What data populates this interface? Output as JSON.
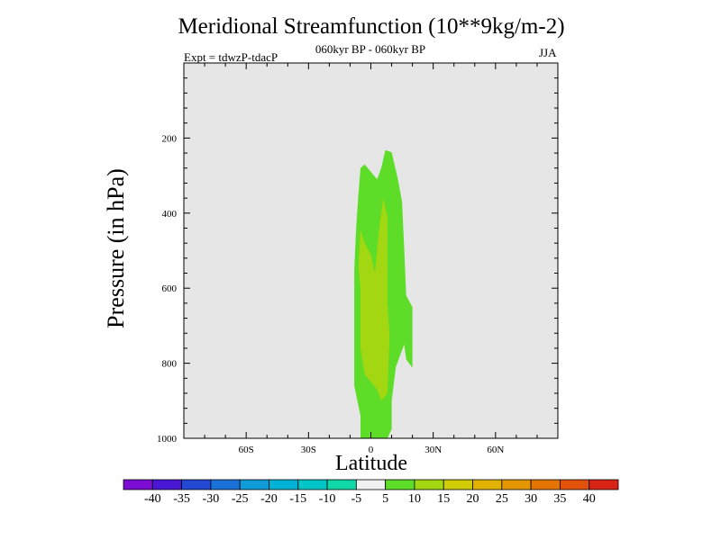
{
  "chart_data": {
    "type": "heatmap",
    "title": "Meridional Streamfunction (10**9kg/m-2)",
    "subtitle": "060kyr BP - 060kyr BP",
    "left_note": "Expt = tdwzP-tdacP",
    "right_note": "JJA",
    "xlabel": "Latitude",
    "ylabel": "Pressure (in hPa)",
    "xlim": [
      -90,
      90
    ],
    "ylim": [
      1000,
      0
    ],
    "x_ticks": [
      {
        "value": -60,
        "label": "60S"
      },
      {
        "value": -30,
        "label": "30S"
      },
      {
        "value": 0,
        "label": "0"
      },
      {
        "value": 30,
        "label": "30N"
      },
      {
        "value": 60,
        "label": "60N"
      }
    ],
    "y_ticks": [
      {
        "value": 200,
        "label": "200"
      },
      {
        "value": 400,
        "label": "400"
      },
      {
        "value": 600,
        "label": "600"
      },
      {
        "value": 800,
        "label": "800"
      },
      {
        "value": 1000,
        "label": "1000"
      }
    ],
    "background_color": "#e6e6e6",
    "contour_regions": [
      {
        "level": "5 to 10",
        "color": "#5ddc28",
        "polygon": [
          [
            -5,
            1000
          ],
          [
            -5,
            940
          ],
          [
            -8,
            860
          ],
          [
            -8,
            690
          ],
          [
            -8,
            550
          ],
          [
            -7,
            430
          ],
          [
            -6,
            350
          ],
          [
            -5,
            280
          ],
          [
            -3,
            270
          ],
          [
            0,
            290
          ],
          [
            3,
            310
          ],
          [
            5,
            280
          ],
          [
            7,
            232
          ],
          [
            10,
            238
          ],
          [
            13,
            310
          ],
          [
            15,
            370
          ],
          [
            16,
            490
          ],
          [
            17,
            620
          ],
          [
            20,
            650
          ],
          [
            20,
            812
          ],
          [
            17,
            790
          ],
          [
            16,
            750
          ],
          [
            12,
            810
          ],
          [
            10,
            900
          ],
          [
            10,
            975
          ],
          [
            8,
            1000
          ]
        ]
      },
      {
        "level": "10 to 15",
        "color": "#a2d712",
        "polygon": [
          [
            -5,
            445
          ],
          [
            -3,
            480
          ],
          [
            0,
            510
          ],
          [
            2,
            560
          ],
          [
            4,
            440
          ],
          [
            6,
            360
          ],
          [
            8,
            410
          ],
          [
            8,
            640
          ],
          [
            9,
            730
          ],
          [
            8,
            880
          ],
          [
            5,
            900
          ],
          [
            3,
            870
          ],
          [
            -3,
            830
          ],
          [
            -5,
            760
          ],
          [
            -5,
            600
          ],
          [
            -6,
            540
          ]
        ]
      }
    ],
    "colorbar": {
      "labels": [
        "-40",
        "-35",
        "-30",
        "-25",
        "-20",
        "-15",
        "-10",
        "-5",
        "5",
        "10",
        "15",
        "20",
        "25",
        "30",
        "35",
        "40"
      ],
      "colors": [
        "#7b0ed2",
        "#4a18d4",
        "#2248d4",
        "#1a72d8",
        "#0f9ad8",
        "#00b3d6",
        "#00c6c8",
        "#10d7a8",
        "#f0f0f0",
        "#5ddc28",
        "#a2d712",
        "#d0cc06",
        "#e2b200",
        "#e49600",
        "#e47400",
        "#e2520a",
        "#d82414"
      ]
    }
  }
}
